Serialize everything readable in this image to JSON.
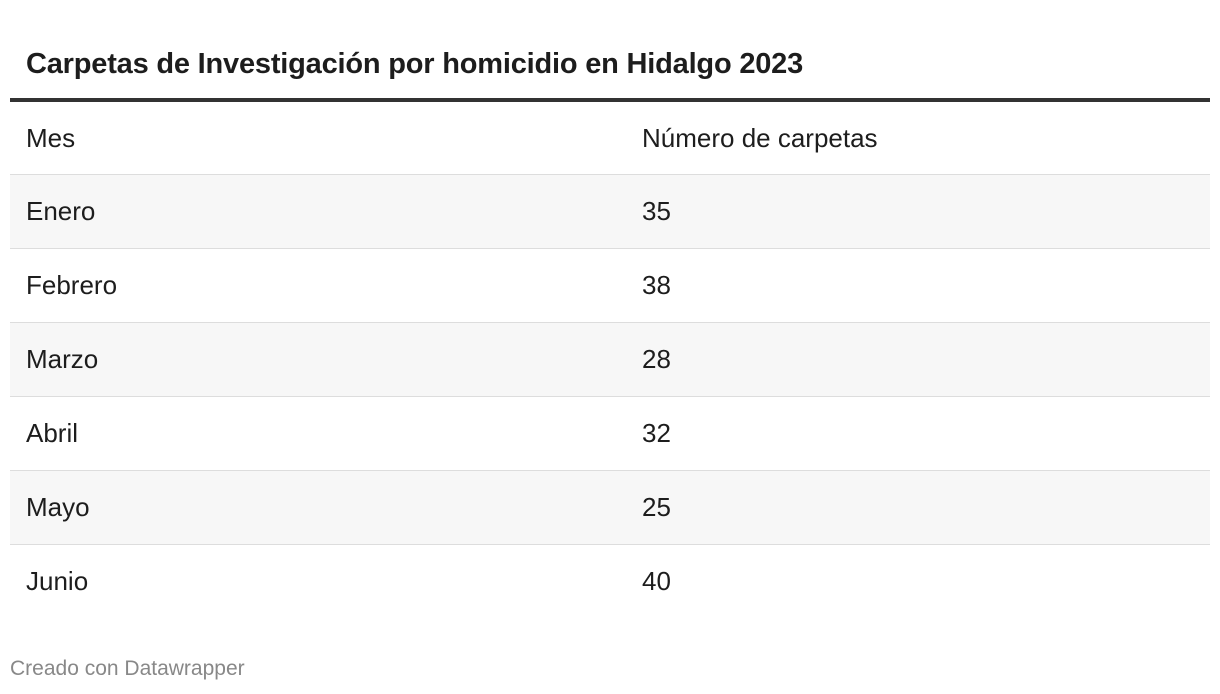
{
  "chart_data": {
    "type": "table",
    "title": "Carpetas de Investigación por homicidio en Hidalgo 2023",
    "columns": [
      "Mes",
      "Número de carpetas"
    ],
    "rows": [
      [
        "Enero",
        "35"
      ],
      [
        "Febrero",
        "38"
      ],
      [
        "Marzo",
        "28"
      ],
      [
        "Abril",
        "32"
      ],
      [
        "Mayo",
        "25"
      ],
      [
        "Junio",
        "40"
      ]
    ],
    "categories": [
      "Enero",
      "Febrero",
      "Marzo",
      "Abril",
      "Mayo",
      "Junio"
    ],
    "values": [
      35,
      38,
      28,
      32,
      25,
      40
    ]
  },
  "footer": {
    "credit": "Creado con Datawrapper"
  },
  "colors": {
    "text": "#1d1d1d",
    "title_rule": "#333333",
    "stripe": "#f7f7f7",
    "row_border": "#dddddd",
    "footer_text": "#888888"
  }
}
